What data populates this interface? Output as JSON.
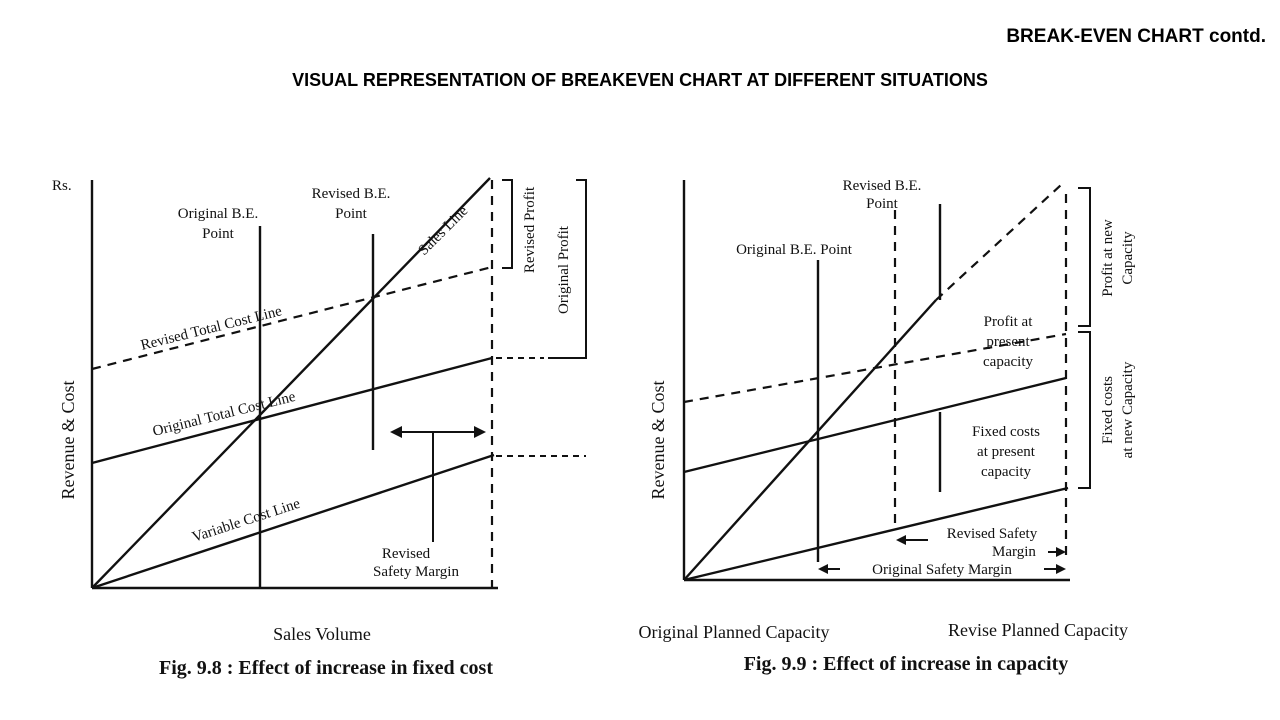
{
  "slide": {
    "corner_title": "BREAK-EVEN CHART contd.",
    "title": "VISUAL REPRESENTATION OF BREAKEVEN CHART AT DIFFERENT SITUATIONS"
  },
  "fig_left": {
    "y_unit": "Rs.",
    "y_axis_label": "Revenue & Cost",
    "x_axis_label": "Sales Volume",
    "caption": "Fig. 9.8 : Effect of increase in fixed cost",
    "labels": {
      "original_be_1": "Original B.E.",
      "original_be_2": "Point",
      "revised_be_1": "Revised B.E.",
      "revised_be_2": "Point",
      "sales_line": "Sales Line",
      "revised_total_cost": "Revised Total Cost Line",
      "original_total_cost": "Original Total Cost Line",
      "variable_cost": "Variable Cost Line",
      "revised_profit": "Revised Profit",
      "original_profit": "Original Profit",
      "revised_safety_1": "Revised",
      "revised_safety_2": "Safety Margin"
    }
  },
  "fig_right": {
    "y_axis_label": "Revenue & Cost",
    "x_label_original": "Original Planned Capacity",
    "x_label_revised": "Revise Planned Capacity",
    "caption": "Fig. 9.9 : Effect of increase in capacity",
    "labels": {
      "revised_be_1": "Revised B.E.",
      "revised_be_2": "Point",
      "original_be": "Original B.E. Point",
      "profit_new_1": "Profit at new",
      "profit_new_2": "Capacity",
      "profit_present_1": "Profit at",
      "profit_present_2": "present",
      "profit_present_3": "capacity",
      "fixed_new_1": "Fixed costs",
      "fixed_new_2": "at new Capacity",
      "fixed_present_1": "Fixed costs",
      "fixed_present_2": "at present",
      "fixed_present_3": "capacity",
      "revised_safety_1": "Revised Safety",
      "revised_safety_2": "Margin",
      "original_safety": "Original Safety Margin"
    }
  }
}
